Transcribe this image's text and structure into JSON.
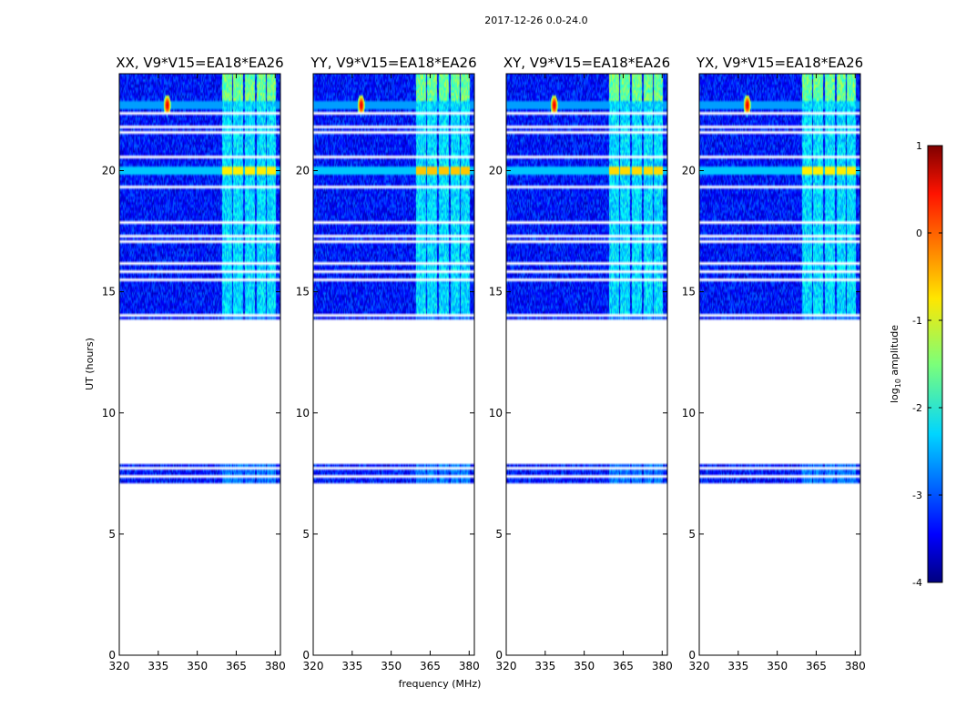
{
  "figure": {
    "suptitle": "2017-12-26 0.0-24.0",
    "xlabel": "frequency (MHz)",
    "ylabel": "UT (hours)"
  },
  "chart_data": {
    "type": "heatmap",
    "colormap": "jet",
    "xlim": [
      320,
      382
    ],
    "ylim": [
      0,
      24
    ],
    "xticks": [
      320,
      335,
      350,
      365,
      380
    ],
    "yticks": [
      0,
      5,
      10,
      15,
      20
    ],
    "colorbar": {
      "label_prefix": "log",
      "label_sub": "10",
      "label_suffix": " amplitude",
      "ticks": [
        1,
        0,
        -1,
        -2,
        -3,
        -4
      ],
      "range": [
        -4,
        1
      ]
    },
    "data_time_ranges_hours": [
      [
        6.95,
        7.85
      ],
      [
        13.85,
        24.0
      ]
    ],
    "flagged_rows_hours": [
      7.05,
      7.2,
      7.35,
      7.55,
      7.75,
      14.0,
      14.2,
      15.2,
      15.5,
      15.8,
      16.2,
      16.9,
      17.1,
      17.3,
      17.7,
      17.85,
      18.6,
      19.3,
      20.6,
      21.6,
      21.8,
      22.2,
      22.4
    ],
    "rfi_bands_mhz": [
      [
        359.5,
        363.5
      ],
      [
        363.8,
        367.8
      ],
      [
        368.2,
        372.2
      ],
      [
        372.8,
        376.5
      ],
      [
        376.8,
        380.2
      ]
    ],
    "rfi_spike": {
      "freq_mhz": 338.5,
      "time_hours": 22.7,
      "log_amplitude": 0.5
    },
    "panels": [
      {
        "title": "XX, V9*V15=EA18*EA26",
        "spike_visible": true,
        "band_2000_level": -0.8
      },
      {
        "title": "YY, V9*V15=EA18*EA26",
        "spike_visible": true,
        "band_2000_level": -0.6
      },
      {
        "title": "XY, V9*V15=EA18*EA26",
        "spike_visible": true,
        "band_2000_level": -0.7
      },
      {
        "title": "YX, V9*V15=EA18*EA26",
        "spike_visible": true,
        "band_2000_level": -0.8
      }
    ]
  }
}
